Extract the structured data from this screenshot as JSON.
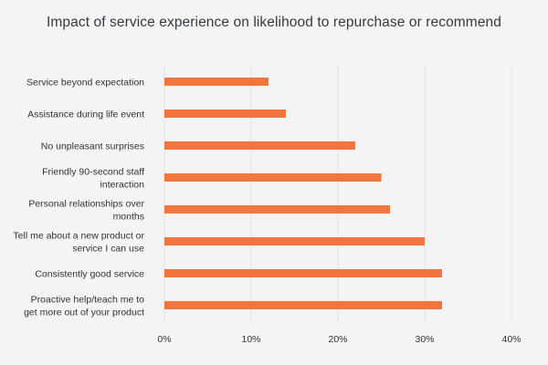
{
  "chart_data": {
    "type": "bar",
    "orientation": "horizontal",
    "title": "Impact of service experience on likelihood to repurchase or recommend",
    "categories": [
      [
        "Service beyond expectation"
      ],
      [
        "Assistance during life event"
      ],
      [
        "No unpleasant surprises"
      ],
      [
        "Friendly 90-second staff",
        "interaction"
      ],
      [
        "Personal relationships over",
        "months"
      ],
      [
        "Tell me about a new product or",
        "service I can use"
      ],
      [
        "Consistently good service"
      ],
      [
        "Proactive help/teach me to",
        "get more out of your product"
      ]
    ],
    "values": [
      12,
      14,
      22,
      25,
      26,
      30,
      32,
      32
    ],
    "unit": "%",
    "xlim": [
      0,
      40
    ],
    "xticks": [
      0,
      10,
      20,
      30,
      40
    ],
    "xtick_labels": [
      "0%",
      "10%",
      "20%",
      "30%",
      "40%"
    ],
    "grid": true,
    "legend": "none",
    "colors": {
      "bar": "#f2743f",
      "background": "#f4f4f4",
      "grid": "#e2e2e2"
    }
  }
}
